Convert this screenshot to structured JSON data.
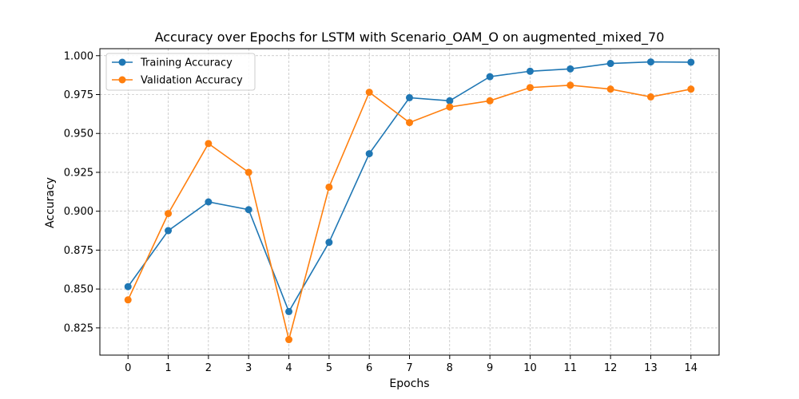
{
  "chart_data": {
    "type": "line",
    "title": "Accuracy over Epochs for LSTM with Scenario_OAM_O on augmented_mixed_70",
    "xlabel": "Epochs",
    "ylabel": "Accuracy",
    "x": [
      0,
      1,
      2,
      3,
      4,
      5,
      6,
      7,
      8,
      9,
      10,
      11,
      12,
      13,
      14
    ],
    "xticks": [
      "0",
      "1",
      "2",
      "3",
      "4",
      "5",
      "6",
      "7",
      "8",
      "9",
      "10",
      "11",
      "12",
      "13",
      "14"
    ],
    "yticks": [
      "0.825",
      "0.850",
      "0.875",
      "0.900",
      "0.925",
      "0.950",
      "0.975",
      "1.000"
    ],
    "ytick_values": [
      0.825,
      0.85,
      0.875,
      0.9,
      0.925,
      0.95,
      0.975,
      1.0
    ],
    "xlim": [
      -0.7,
      14.7
    ],
    "ylim": [
      0.8075,
      1.0045
    ],
    "grid": true,
    "legend_position": "top-left",
    "series": [
      {
        "name": "Training Accuracy",
        "color": "#1f77b4",
        "values": [
          0.8515,
          0.8875,
          0.906,
          0.901,
          0.8355,
          0.88,
          0.937,
          0.973,
          0.971,
          0.9865,
          0.99,
          0.9915,
          0.995,
          0.996,
          0.9958
        ]
      },
      {
        "name": "Validation Accuracy",
        "color": "#ff7f0e",
        "values": [
          0.843,
          0.8985,
          0.9435,
          0.925,
          0.8175,
          0.9155,
          0.9765,
          0.957,
          0.967,
          0.971,
          0.9795,
          0.981,
          0.9785,
          0.9735,
          0.9785
        ]
      }
    ]
  }
}
